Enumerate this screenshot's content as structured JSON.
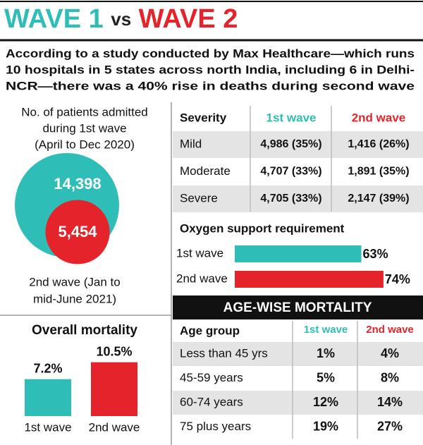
{
  "header": {
    "title_parts": [
      "WAVE 1",
      "vs",
      "WAVE 2"
    ]
  },
  "intro_lines": [
    "According to a study conducted by Max Healthcare—which runs",
    "10 hospitals in 5 states across north India, including 6 in Delhi-",
    "NCR—there was a 40% rise in deaths during second wave"
  ],
  "chart_data": [
    {
      "type": "bubble",
      "title_lines": [
        "No. of patients admitted",
        "during 1st wave",
        "(April to Dec 2020)"
      ],
      "values": [
        14398,
        5454
      ],
      "value_labels": [
        "14,398",
        "5,454"
      ],
      "colors": [
        "#2fbdb8",
        "#e5232a"
      ],
      "annotation_lines": [
        "2nd wave (Jan to",
        "mid-June 2021)"
      ]
    },
    {
      "type": "hbar",
      "title": "Oxygen support requirement",
      "categories": [
        "1st wave",
        "2nd wave"
      ],
      "values": [
        63,
        74
      ],
      "value_labels": [
        "63%",
        "74%"
      ],
      "colors": [
        "#2fbdb8",
        "#e5232a"
      ],
      "xlim": [
        0,
        100
      ]
    },
    {
      "type": "bar",
      "title": "Overall mortality",
      "categories": [
        "1st wave",
        "2nd wave"
      ],
      "values": [
        7.2,
        10.5
      ],
      "value_labels": [
        "7.2%",
        "10.5%"
      ],
      "colors": [
        "#2fbdb8",
        "#e5232a"
      ],
      "ylim": [
        0,
        11
      ]
    }
  ],
  "severity_table": {
    "header": [
      "Severity",
      "1st wave",
      "2nd wave"
    ],
    "rows": [
      [
        "Mild",
        "4,986 (35%)",
        "1,416 (26%)"
      ],
      [
        "Moderate",
        "4,707 (33%)",
        "1,891 (35%)"
      ],
      [
        "Severe",
        "4,705 (33%)",
        "2,147 (39%)"
      ]
    ]
  },
  "age_table": {
    "title": "AGE-WISE MORTALITY",
    "header": [
      "Age group",
      "1st wave",
      "2nd wave"
    ],
    "rows": [
      [
        "Less than 45 yrs",
        "1%",
        "4%"
      ],
      [
        "45-59 years",
        "5%",
        "8%"
      ],
      [
        "60-74 years",
        "12%",
        "14%"
      ],
      [
        "75 plus years",
        "19%",
        "27%"
      ]
    ]
  }
}
